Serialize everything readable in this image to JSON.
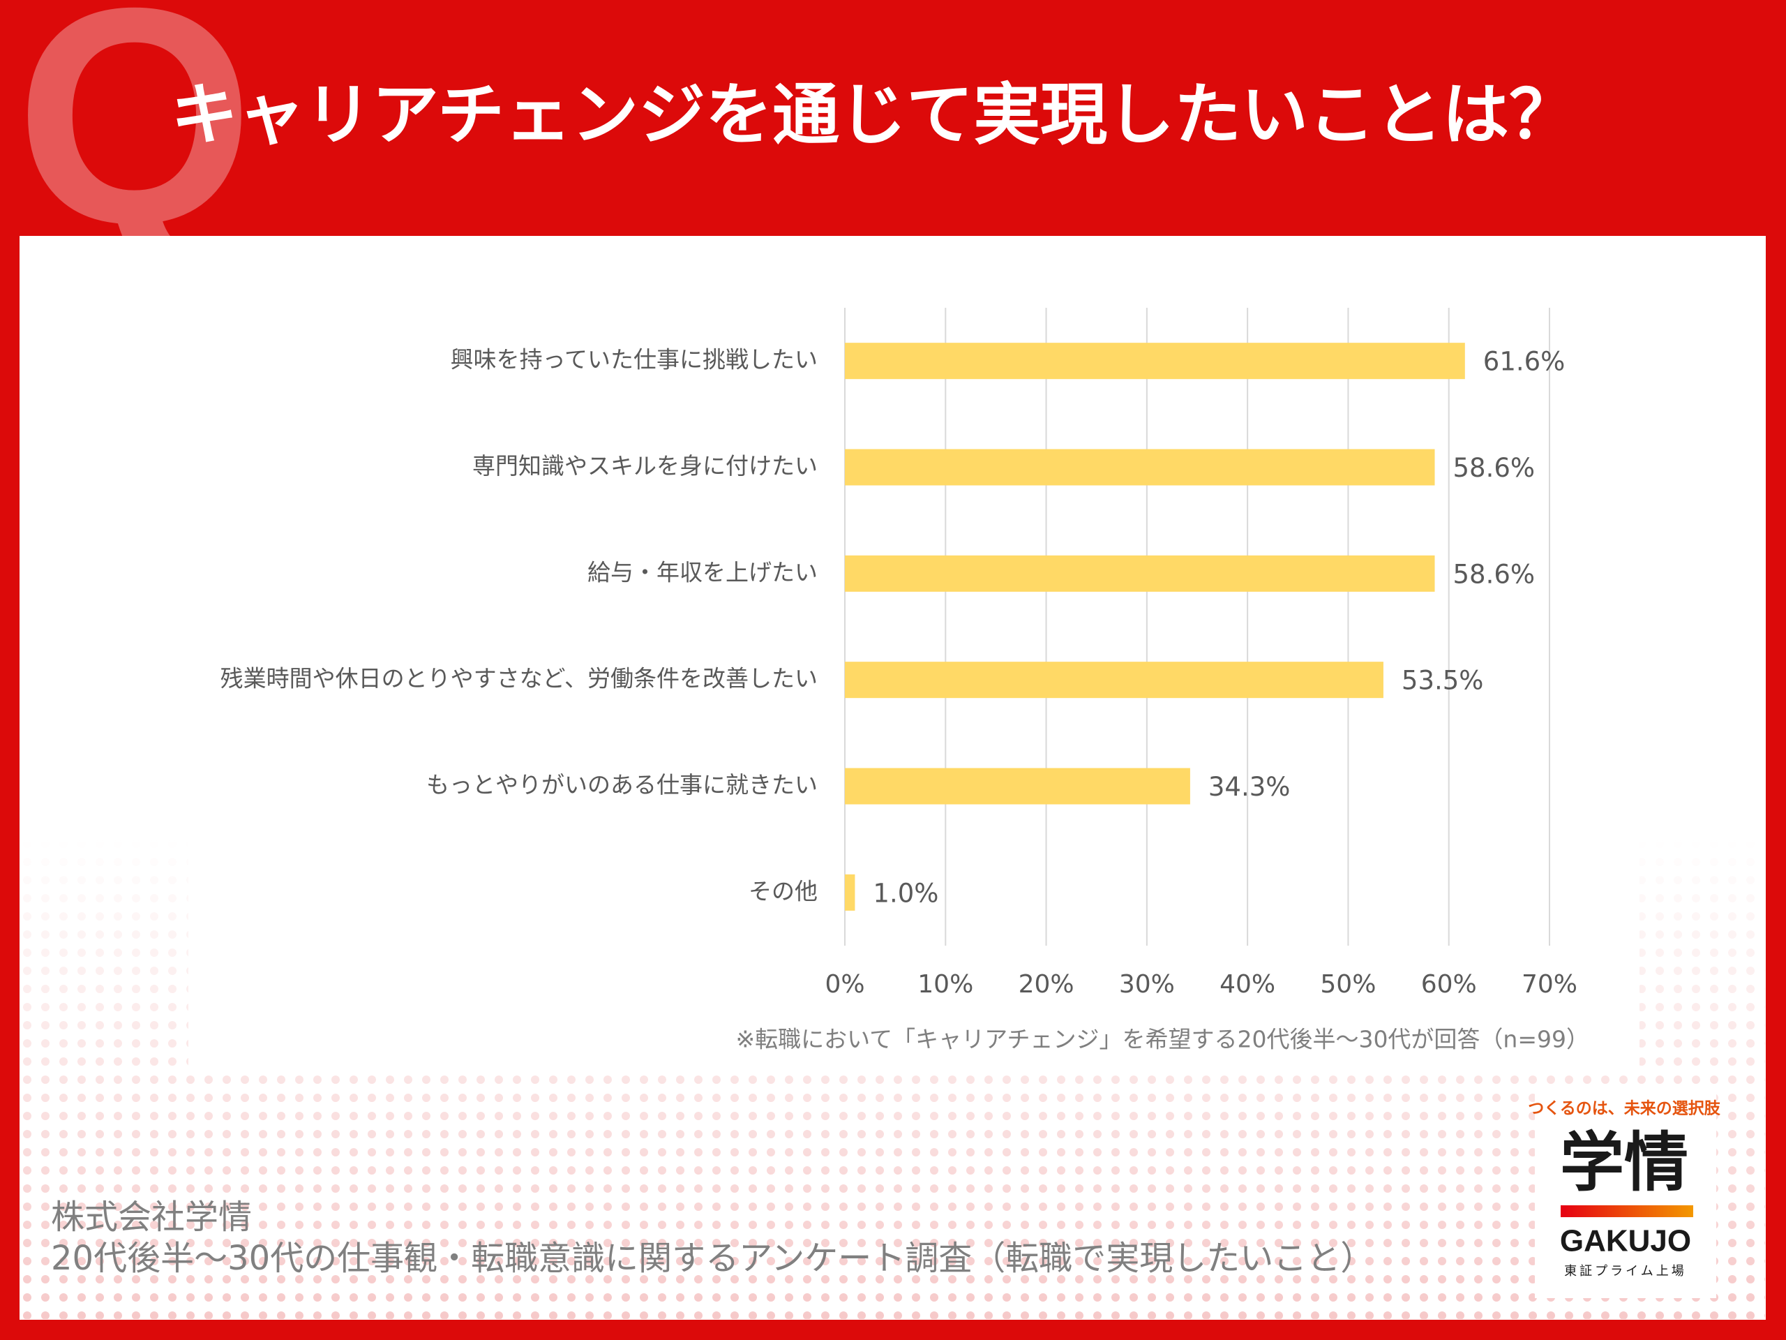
{
  "header": {
    "letter": "Q",
    "title": "キャリアチェンジを通じて実現したいことは？"
  },
  "chart_data": {
    "type": "bar",
    "orientation": "horizontal",
    "categories": [
      "興味を持っていた仕事に挑戦したい",
      "専門知識やスキルを身に付けたい",
      "給与・年収を上げたい",
      "残業時間や休日のとりやすさなど、労働条件を改善したい",
      "もっとやりがいのある仕事に就きたい",
      "その他"
    ],
    "values": [
      61.6,
      58.6,
      58.6,
      53.5,
      34.3,
      1.0
    ],
    "value_labels": [
      "61.6%",
      "58.6%",
      "58.6%",
      "53.5%",
      "34.3%",
      "1.0%"
    ],
    "color": "#ffd966",
    "xlim": [
      0,
      70
    ],
    "xticks": [
      {
        "value": 0,
        "label": "0%"
      },
      {
        "value": 10,
        "label": "10%"
      },
      {
        "value": 20,
        "label": "20%"
      },
      {
        "value": 30,
        "label": "30%"
      },
      {
        "value": 40,
        "label": "40%"
      },
      {
        "value": 50,
        "label": "50%"
      },
      {
        "value": 60,
        "label": "60%"
      },
      {
        "value": 70,
        "label": "70%"
      }
    ],
    "grid": true,
    "note": "※転職において「キャリアチェンジ」を希望する20代後半～30代が回答（n=99）"
  },
  "footer": {
    "company": "株式会社学情",
    "survey": "20代後半～30代の仕事観・転職意識に関するアンケート調査（転職で実現したいこと）"
  },
  "logo": {
    "tagline": "つくるのは、未来の選択肢",
    "mark": "学情",
    "name": "GAKUJO",
    "listing": "東証プライム上場"
  }
}
